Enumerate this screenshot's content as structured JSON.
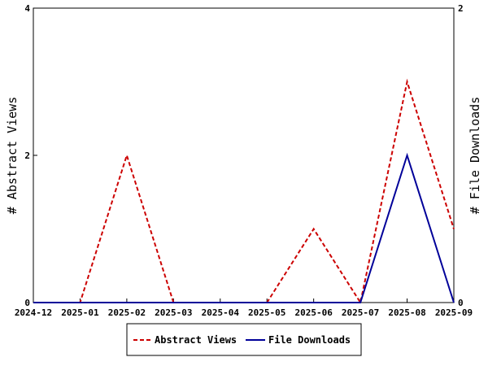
{
  "chart_data": {
    "type": "line",
    "title": "",
    "categories": [
      "2024-12",
      "2025-01",
      "2025-02",
      "2025-03",
      "2025-04",
      "2025-05",
      "2025-06",
      "2025-07",
      "2025-08",
      "2025-09"
    ],
    "x_tick_labels": [
      "2024-12",
      "2025-01",
      "2025-02",
      "2025-03",
      "2025-04",
      "2025-05",
      "2025-06",
      "2025-07",
      "2025-08",
      "2025-09"
    ],
    "ylabel": "# Abstract Views",
    "y2label": "# File Downloads",
    "ylim": [
      0,
      4
    ],
    "y2lim": [
      0,
      2
    ],
    "y_ticks": [
      "0",
      "2",
      "4"
    ],
    "y2_ticks": [
      "0",
      "2"
    ],
    "grid": false,
    "legend_position": "bottom",
    "series": [
      {
        "name": "Abstract Views",
        "axis": "left",
        "color": "#cc0000",
        "dash": "dashed",
        "x": [
          "2024-12",
          "2025-01",
          "2025-02",
          "2025-03",
          "2025-04",
          "2025-05",
          "2025-06",
          "2025-07",
          "2025-08",
          "2025-09"
        ],
        "values": [
          0,
          0,
          2,
          0,
          0,
          0,
          1,
          0,
          3,
          1
        ]
      },
      {
        "name": "File Downloads",
        "axis": "right",
        "color": "#000099",
        "dash": "solid",
        "x": [
          "2024-12",
          "2025-01",
          "2025-02",
          "2025-03",
          "2025-04",
          "2025-05",
          "2025-06",
          "2025-07",
          "2025-08",
          "2025-09"
        ],
        "values": [
          0,
          0,
          0,
          0,
          0,
          0,
          0,
          0,
          1,
          0
        ]
      }
    ]
  }
}
